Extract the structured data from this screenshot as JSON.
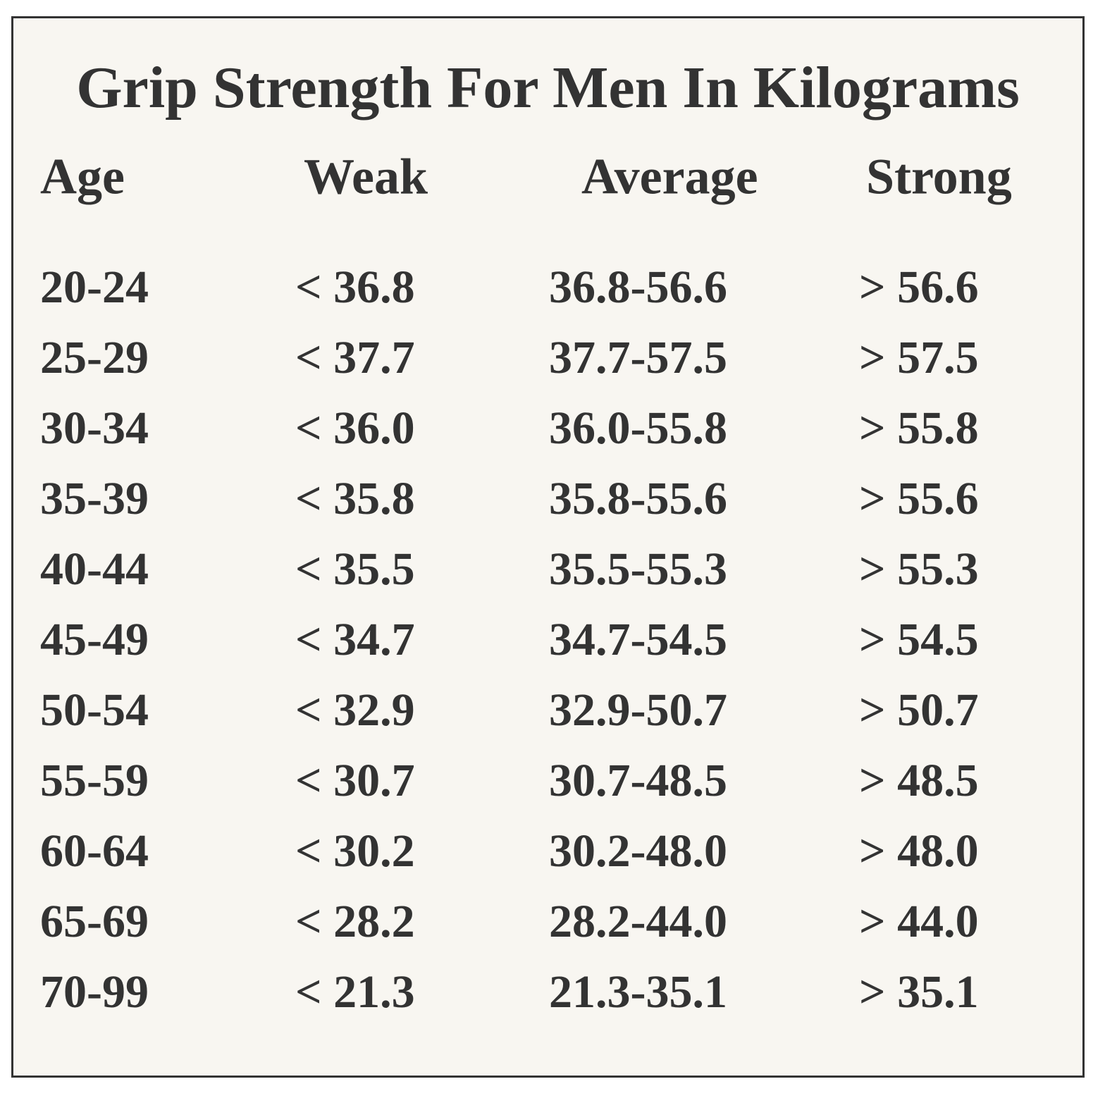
{
  "title": "Grip Strength For Men In Kilograms",
  "table": {
    "headers": [
      "Age",
      "Weak",
      "Average",
      "Strong"
    ],
    "rows": [
      [
        "20-24",
        "< 36.8",
        "36.8-56.6",
        "> 56.6"
      ],
      [
        "25-29",
        "< 37.7",
        "37.7-57.5",
        "> 57.5"
      ],
      [
        "30-34",
        "< 36.0",
        "36.0-55.8",
        "> 55.8"
      ],
      [
        "35-39",
        "< 35.8",
        "35.8-55.6",
        "> 55.6"
      ],
      [
        "40-44",
        "< 35.5",
        "35.5-55.3",
        "> 55.3"
      ],
      [
        "45-49",
        "< 34.7",
        "34.7-54.5",
        "> 54.5"
      ],
      [
        "50-54",
        "< 32.9",
        "32.9-50.7",
        "> 50.7"
      ],
      [
        "55-59",
        "< 30.7",
        "30.7-48.5",
        "> 48.5"
      ],
      [
        "60-64",
        "< 30.2",
        "30.2-48.0",
        "> 48.0"
      ],
      [
        "65-69",
        "< 28.2",
        "28.2-44.0",
        "> 44.0"
      ],
      [
        "70-99",
        "< 21.3",
        "21.3-35.1",
        "> 35.1"
      ]
    ]
  }
}
